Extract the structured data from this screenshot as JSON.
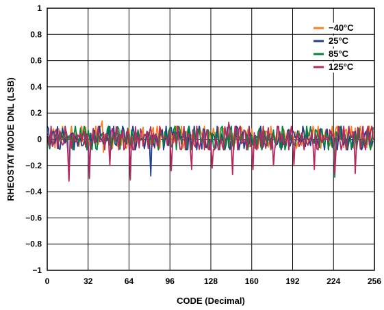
{
  "chart_data": {
    "type": "line",
    "title": "",
    "xlabel": "CODE (Decimal)",
    "ylabel": "RHEOSTAT MODE DNL (LSB)",
    "xlim": [
      0,
      256
    ],
    "ylim": [
      -1,
      1
    ],
    "x_ticks": [
      "0",
      "32",
      "64",
      "96",
      "128",
      "160",
      "192",
      "224",
      "256"
    ],
    "y_ticks": [
      "1",
      "0.8",
      "0.6",
      "0.4",
      "0.2",
      "0",
      "−0.2",
      "−0.4",
      "−0.6",
      "−0.8",
      "−1"
    ],
    "grid": true,
    "legend_position": "top-right",
    "series": [
      {
        "name": "−40°C",
        "color": "#f58220",
        "x_range": [
          0,
          255
        ],
        "typical_band": [
          -0.07,
          0.1
        ],
        "notable_points": [
          {
            "x": 43,
            "y": 0.14
          },
          {
            "x": 44,
            "y": -0.1
          }
        ]
      },
      {
        "name": "25°C",
        "color": "#1f3f8f",
        "x_range": [
          0,
          255
        ],
        "typical_band": [
          -0.08,
          0.1
        ],
        "notable_points": [
          {
            "x": 17,
            "y": -0.31
          },
          {
            "x": 33,
            "y": -0.29
          },
          {
            "x": 65,
            "y": -0.3
          },
          {
            "x": 81,
            "y": -0.28
          }
        ]
      },
      {
        "name": "85°C",
        "color": "#00843d",
        "x_range": [
          0,
          255
        ],
        "typical_band": [
          -0.08,
          0.1
        ],
        "notable_points": [
          {
            "x": 225,
            "y": -0.29
          }
        ]
      },
      {
        "name": "125°C",
        "color": "#b5295e",
        "x_range": [
          0,
          255
        ],
        "typical_band": [
          -0.08,
          0.1
        ],
        "notable_points": [
          {
            "x": 17,
            "y": -0.32
          },
          {
            "x": 33,
            "y": -0.3
          },
          {
            "x": 49,
            "y": -0.2
          },
          {
            "x": 65,
            "y": -0.31
          },
          {
            "x": 97,
            "y": -0.24
          },
          {
            "x": 113,
            "y": -0.23
          },
          {
            "x": 129,
            "y": -0.22
          },
          {
            "x": 145,
            "y": -0.27
          },
          {
            "x": 161,
            "y": -0.23
          },
          {
            "x": 177,
            "y": -0.2
          },
          {
            "x": 193,
            "y": -0.2
          },
          {
            "x": 209,
            "y": -0.23
          },
          {
            "x": 225,
            "y": -0.26
          },
          {
            "x": 241,
            "y": -0.26
          },
          {
            "x": 142,
            "y": 0.13
          }
        ]
      }
    ],
    "major_carry_codes": [
      17,
      33,
      49,
      65,
      81,
      97,
      113,
      129,
      145,
      161,
      177,
      193,
      209,
      225,
      241
    ]
  }
}
